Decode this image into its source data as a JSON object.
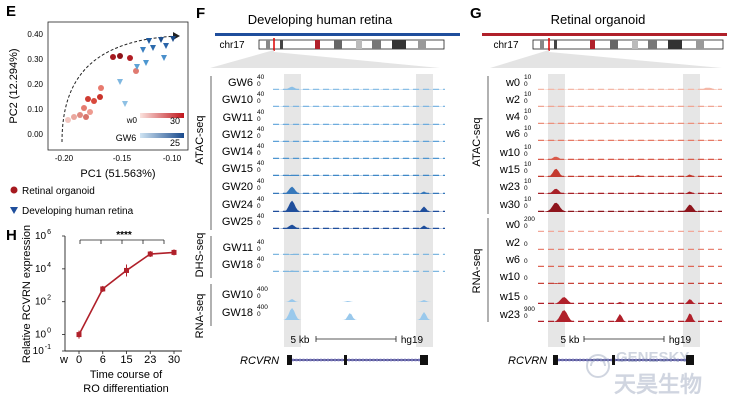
{
  "colors": {
    "retina_blue": "#1f4e9c",
    "organoid_red": "#b0202a",
    "highlight": "#e6e6e6"
  },
  "panel_labels": {
    "E": "E",
    "F": "F",
    "G": "G",
    "H": "H"
  },
  "panel_E": {
    "xlabel": "PC1 (51.563%)",
    "ylabel": "PC2 (12.294%)",
    "x_ticks": [
      "-0.20",
      "-0.15",
      "-0.10"
    ],
    "y_ticks": [
      "0.00",
      "0.10",
      "0.20",
      "0.30",
      "0.40"
    ],
    "legend": {
      "organoid": "Retinal organoid",
      "retina": "Developing human retina"
    },
    "colorbar_red": {
      "low": "w0",
      "high": "30"
    },
    "colorbar_blue": {
      "low": "GW6",
      "high": "25"
    }
  },
  "panel_F": {
    "title": "Developing human retina",
    "chrom": "chr17",
    "atac_label": "ATAC-seq",
    "dhs_label": "DHS-seq",
    "rna_label": "RNA-seq",
    "atac_tracks": [
      "GW6",
      "GW10",
      "GW11",
      "GW12",
      "GW14",
      "GW15",
      "GW20",
      "GW24",
      "GW25"
    ],
    "atac_scale_top": "40",
    "atac_scale_bottom": "0",
    "dhs_tracks": [
      "GW11",
      "GW18"
    ],
    "dhs_scale_top": "40",
    "dhs_scale_bottom": "0",
    "rna_tracks": [
      "GW10",
      "GW18"
    ],
    "rna_scale_top": "400",
    "rna_scale_bottom": "0",
    "scale_text": "5 kb",
    "assembly": "hg19",
    "gene": "RCVRN"
  },
  "panel_G": {
    "title": "Retinal organoid",
    "chrom": "chr17",
    "atac_label": "ATAC-seq",
    "rna_label": "RNA-seq",
    "atac_tracks": [
      "w0",
      "w2",
      "w4",
      "w6",
      "w10",
      "w15",
      "w23",
      "w30"
    ],
    "atac_scale_top": "10",
    "atac_scale_bottom": "0",
    "rna_tracks": [
      {
        "name": "w0",
        "top": "200"
      },
      {
        "name": "w2",
        "top": ""
      },
      {
        "name": "w6",
        "top": ""
      },
      {
        "name": "w10",
        "top": ""
      },
      {
        "name": "w15",
        "top": ""
      },
      {
        "name": "w23",
        "top": "900"
      }
    ],
    "rna_scale_bottom": "0",
    "scale_text": "5 kb",
    "assembly": "hg19",
    "gene": "RCVRN"
  },
  "panel_H": {
    "ylabel": "Relative RCVRN expression",
    "xlabel_line1": "Time course of",
    "xlabel_line2": "RO differentiation",
    "significance": "****"
  },
  "watermark": {
    "en": "GENESKY",
    "cn": "天昊生物"
  },
  "chart_data": [
    {
      "type": "line",
      "panel": "H",
      "x_prefix": "w",
      "categories": [
        "0",
        "6",
        "15",
        "23",
        "30"
      ],
      "values": [
        1,
        600,
        8000,
        80000,
        100000
      ],
      "ylabel": "Relative RCVRN expression",
      "xlabel": "Time course of RO differentiation",
      "y_scale": "log",
      "ylim": [
        0.1,
        1000000
      ],
      "y_ticks": [
        "10^-1",
        "10^0",
        "10^2",
        "10^4",
        "10^6"
      ]
    }
  ]
}
